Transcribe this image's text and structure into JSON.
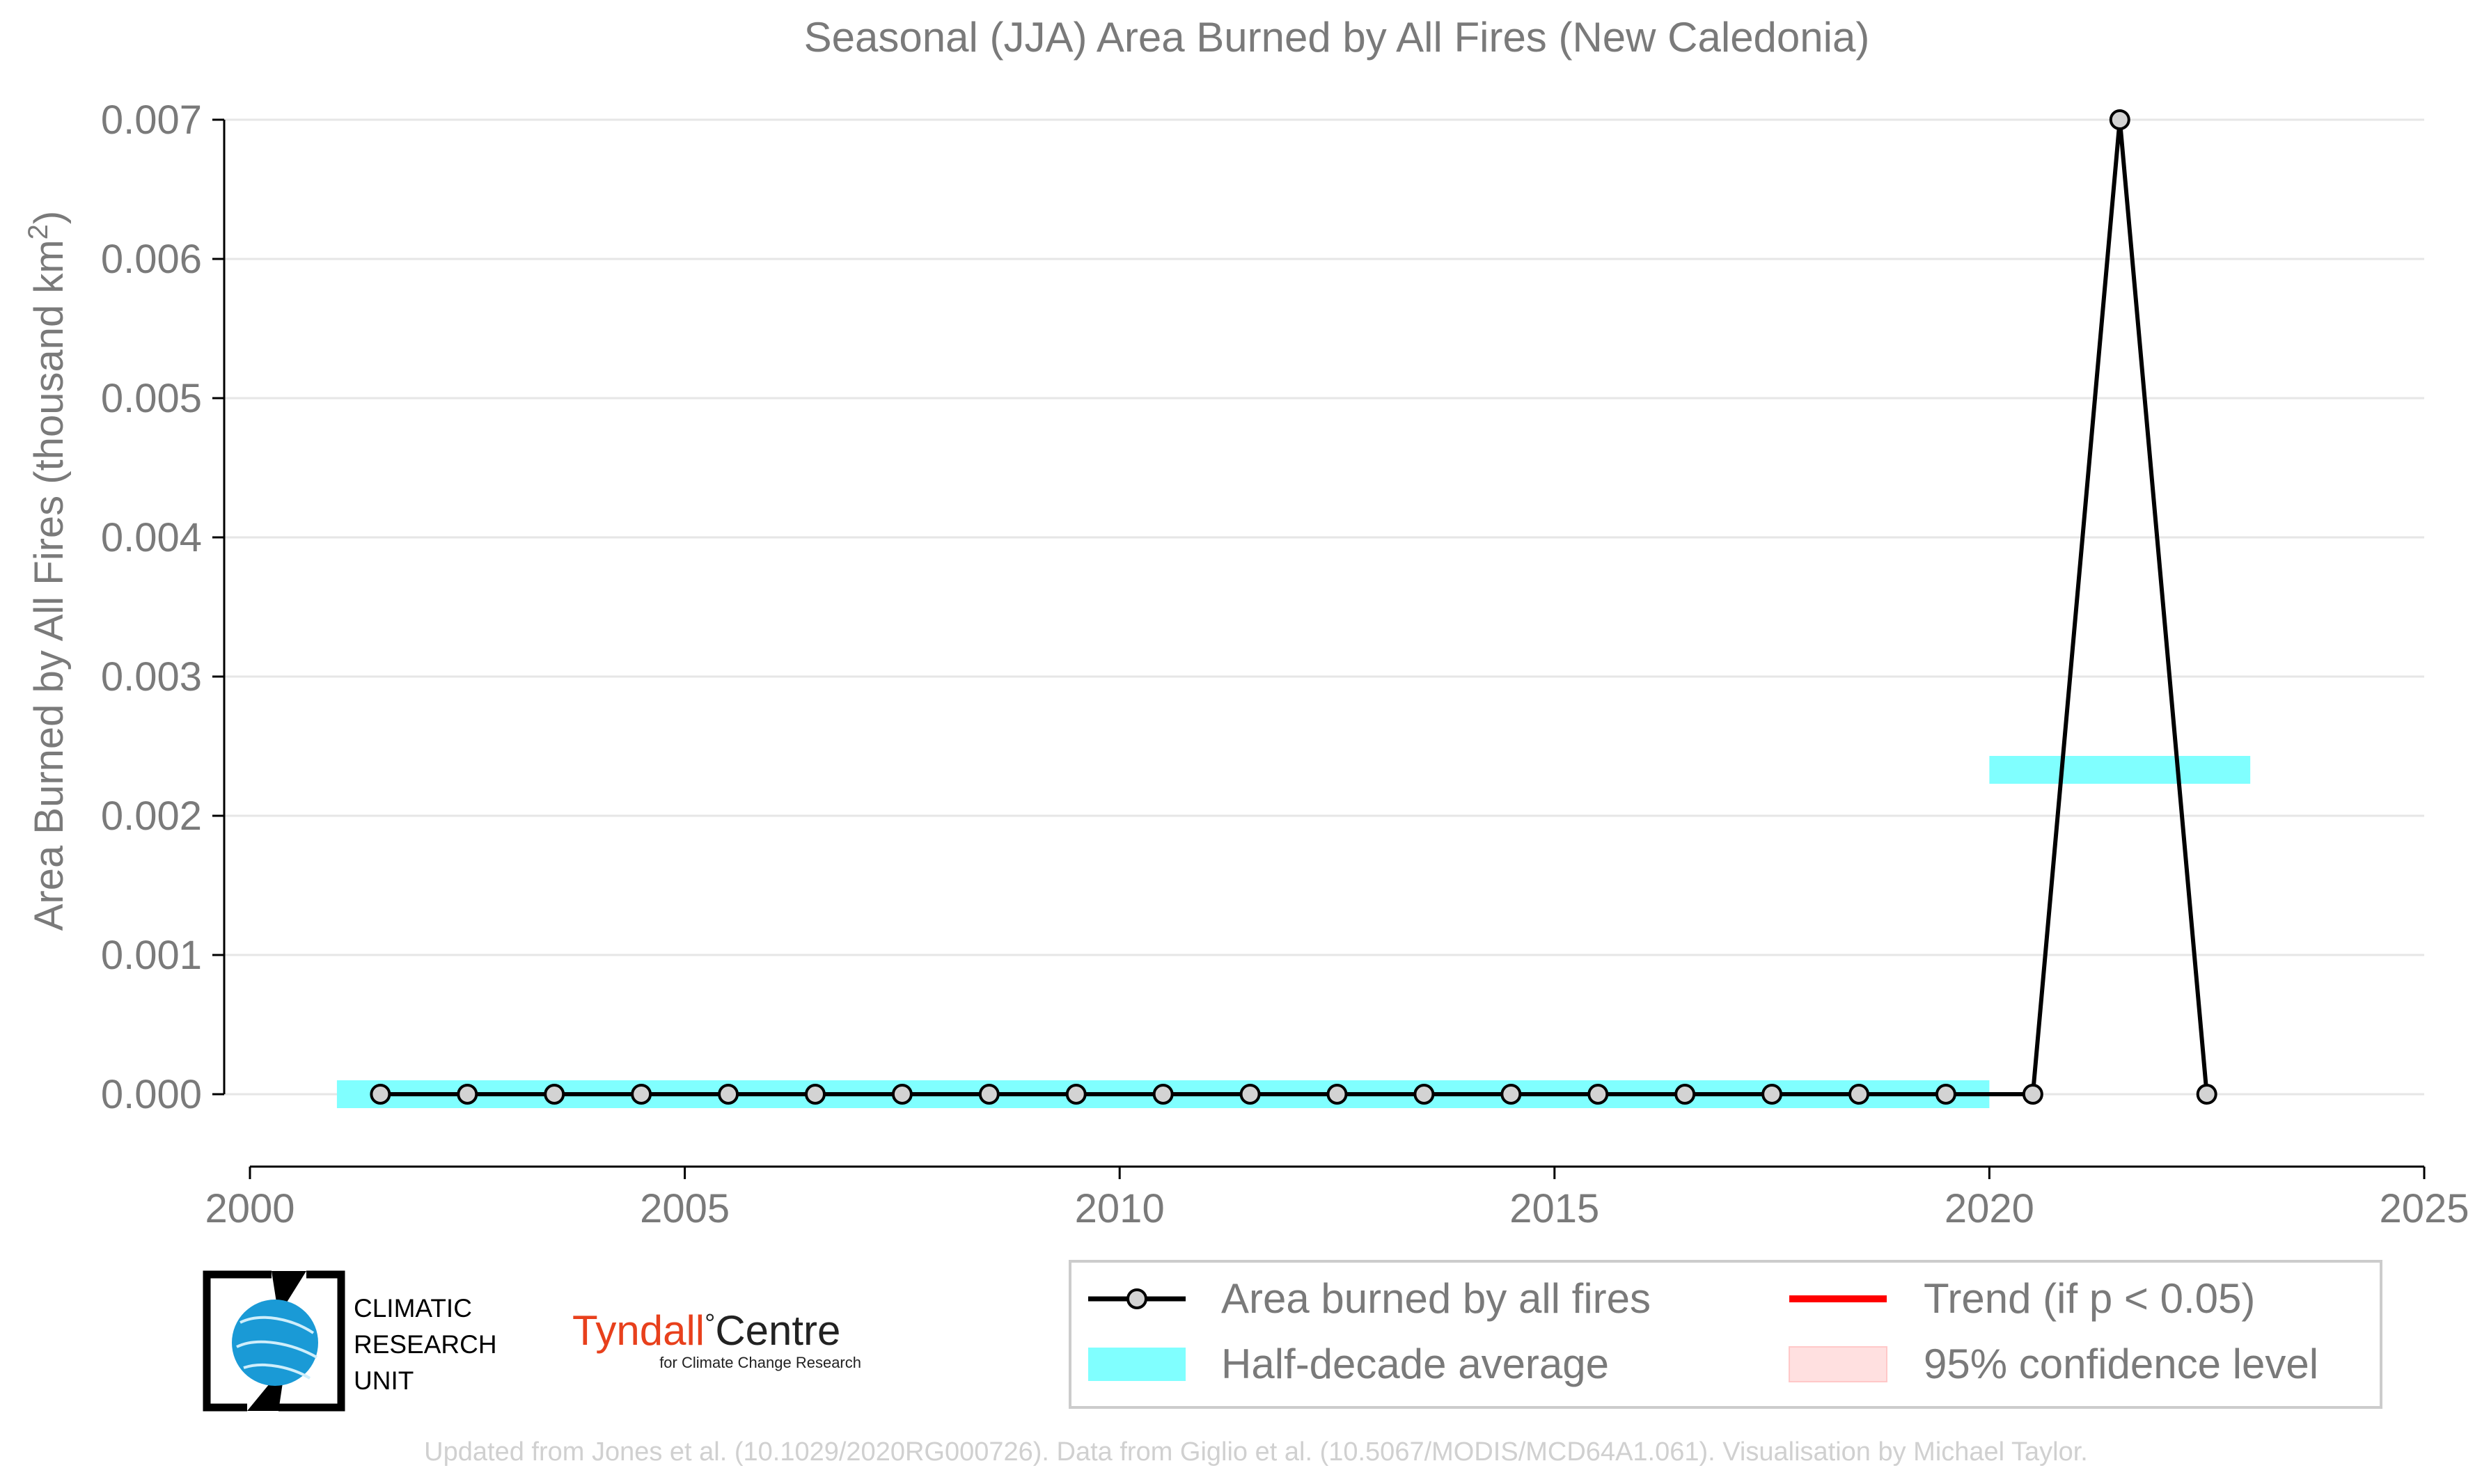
{
  "chart_data": {
    "type": "line",
    "title": "Seasonal (JJA) Area Burned by All Fires (New Caledonia)",
    "ylabel": "Area Burned by All Fires (thousand km²)",
    "xlabel": "",
    "xlim": [
      2000,
      2025
    ],
    "ylim": [
      -0.00053,
      0.007
    ],
    "x_ticks": [
      "2000",
      "2005",
      "2010",
      "2015",
      "2020",
      "2025"
    ],
    "y_ticks": [
      "0.000",
      "0.001",
      "0.002",
      "0.003",
      "0.004",
      "0.005",
      "0.006",
      "0.007"
    ],
    "grid": "horizontal",
    "series": [
      {
        "name": "Area burned by all fires",
        "x": [
          2001.5,
          2002.5,
          2003.5,
          2004.5,
          2005.5,
          2006.5,
          2007.5,
          2008.5,
          2009.5,
          2010.5,
          2011.5,
          2012.5,
          2013.5,
          2014.5,
          2015.5,
          2016.5,
          2017.5,
          2018.5,
          2019.5,
          2020.5,
          2021.5,
          2022.5
        ],
        "values": [
          0,
          0,
          0,
          0,
          0,
          0,
          0,
          0,
          0,
          0,
          0,
          0,
          0,
          0,
          0,
          0,
          0,
          0,
          0,
          0,
          0.007,
          0
        ],
        "color": "#000000"
      }
    ],
    "half_decade_average": [
      {
        "x_start": 2001,
        "x_end": 2020,
        "value": 0
      },
      {
        "x_start": 2020,
        "x_end": 2023,
        "value": 0.00233
      }
    ],
    "legend": {
      "placement": "bottom-right",
      "items": [
        {
          "label": "Area burned by all fires",
          "kind": "line-marker",
          "color": "#000000"
        },
        {
          "label": "Trend (if p < 0.05)",
          "kind": "line",
          "color": "#ff0000"
        },
        {
          "label": "Half-decade average",
          "kind": "band",
          "color": "#80ffff"
        },
        {
          "label": "95% confidence level",
          "kind": "band",
          "color": "#ffe0e0"
        }
      ]
    }
  },
  "logos": {
    "cru": [
      "CLIMATIC",
      "RESEARCH",
      "UNIT"
    ],
    "tyndall_main": "Tyndall",
    "tyndall_degree": "°",
    "tyndall_centre": "Centre",
    "tyndall_sub": "for Climate Change Research"
  },
  "credit": "Updated from Jones et al. (10.1029/2020RG000726). Data from Giglio et al. (10.5067/MODIS/MCD64A1.061). Visualisation by Michael Taylor.",
  "colors": {
    "line": "#000000",
    "marker_fill": "#d3d3d3",
    "band": "#80ffff",
    "trend": "#ff0000",
    "confidence": "#ffe0e0",
    "grid": "#e6e6e6",
    "text": "#7a7a7a",
    "cru_blue": "#1a9ad6",
    "tyndall_red": "#e8401c"
  }
}
